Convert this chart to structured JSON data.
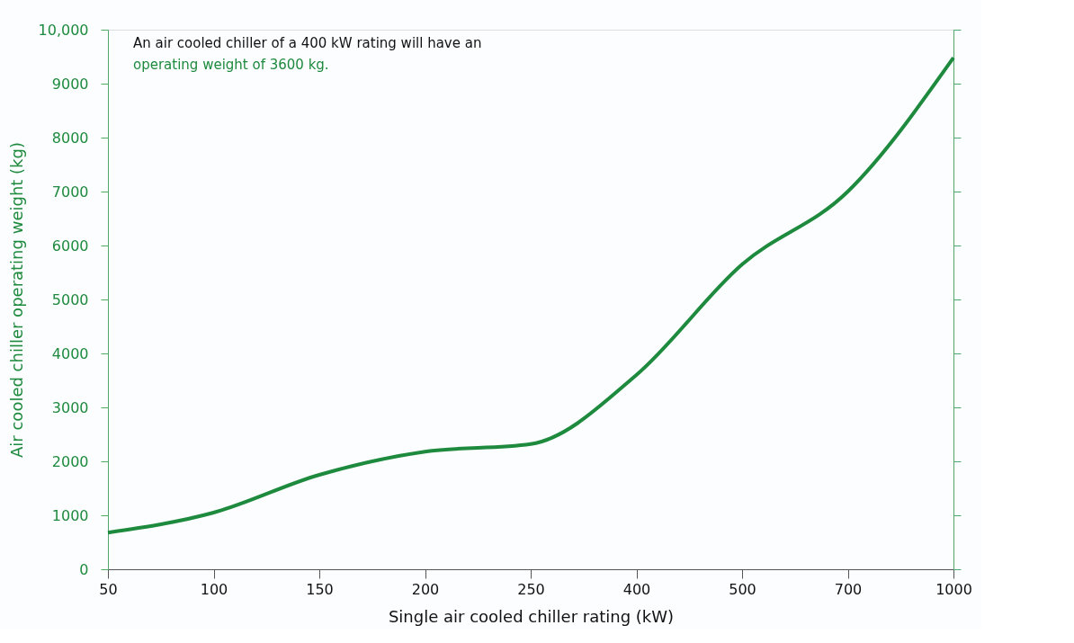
{
  "chart_data": {
    "type": "line",
    "xlabel": "Single air cooled chiller rating (kW)",
    "ylabel": "Air cooled chiller operating weight (kg)",
    "categories": [
      "50",
      "100",
      "150",
      "200",
      "250",
      "400",
      "500",
      "700",
      "1000"
    ],
    "series": [
      {
        "color": "#1e8a3e",
        "values": [
          680,
          1050,
          1750,
          2180,
          2320,
          3600,
          5650,
          7000,
          9480
        ]
      }
    ],
    "ylim": [
      0,
      10000
    ],
    "yticks": [
      0,
      1000,
      2000,
      3000,
      4000,
      5000,
      6000,
      7000,
      8000,
      9000,
      {
        "value": 10000,
        "label": "10,000"
      }
    ],
    "annotations": [
      "An air cooled chiller of a 400 kW rating will have an",
      "operating weight of 3600 kg."
    ],
    "grid": false,
    "legend": false,
    "marker": "none",
    "line_style": "solid"
  }
}
